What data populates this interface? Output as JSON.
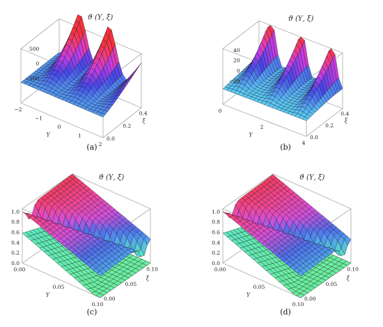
{
  "chart_data": [
    {
      "type": "surface3d",
      "caption": "(a)",
      "title": "ϑ (Υ, ξ)",
      "xlabel": "Υ",
      "ylabel": "ξ",
      "x_ticks": [
        "−2",
        "−1",
        "0",
        "1",
        "2"
      ],
      "y_ticks": [
        "0.0",
        "0.2",
        "0.4"
      ],
      "z_ticks": [
        "500",
        "0",
        "−500"
      ],
      "x_range": [
        -2,
        2
      ],
      "y_range": [
        0,
        0.5
      ],
      "z_range": [
        -800,
        900
      ]
    },
    {
      "type": "surface3d",
      "caption": "(b)",
      "title": "ϑ (Υ, ξ)",
      "xlabel": "Υ",
      "ylabel": "ξ",
      "x_ticks": [
        "0",
        "2",
        "4"
      ],
      "y_ticks": [
        "0.0",
        "0.2",
        "0.4"
      ],
      "z_ticks": [
        "40",
        "20",
        "0",
        "−20"
      ],
      "x_range": [
        0,
        5
      ],
      "y_range": [
        0,
        0.5
      ],
      "z_range": [
        -30,
        45
      ]
    },
    {
      "type": "surface3d",
      "caption": "(c)",
      "title": "ϑ (Υ, ξ)",
      "xlabel": "Υ",
      "ylabel": "ξ",
      "x_ticks": [
        "0.00",
        "0.05",
        "0.10"
      ],
      "y_ticks": [
        "0.00",
        "0.05",
        "0.10"
      ],
      "z_ticks": [
        "1.0",
        "0.8",
        "0.6",
        "0.4",
        "0.2",
        "0.0"
      ],
      "x_range": [
        0,
        0.1
      ],
      "y_range": [
        0,
        0.1
      ],
      "z_range": [
        0,
        1.0
      ]
    },
    {
      "type": "surface3d",
      "caption": "(d)",
      "title": "ϑ (Υ, ξ)",
      "xlabel": "Υ",
      "ylabel": "ξ",
      "x_ticks": [
        "0.00",
        "0.05",
        "0.10"
      ],
      "y_ticks": [
        "0.00",
        "0.05",
        "0.10"
      ],
      "z_ticks": [
        "1.0",
        "0.8",
        "0.6",
        "0.4",
        "0.2",
        "0.0"
      ],
      "x_range": [
        0,
        0.1
      ],
      "y_range": [
        0,
        0.1
      ],
      "z_range": [
        0,
        1.0
      ]
    }
  ]
}
